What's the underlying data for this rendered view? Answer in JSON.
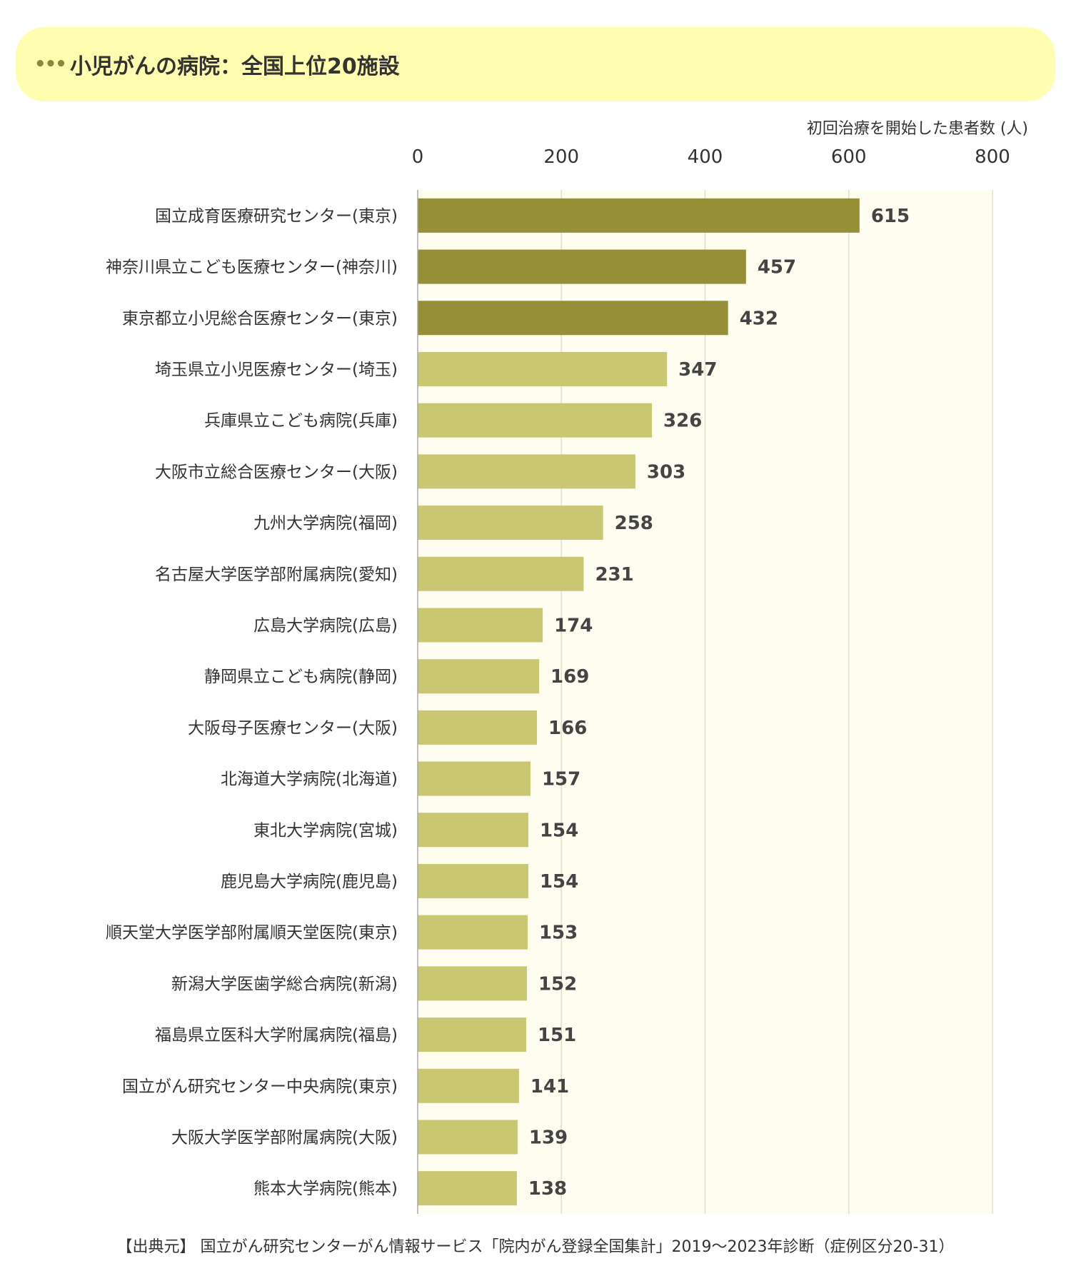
{
  "header": {
    "title": "小児がんの病院：全国上位20施設",
    "dots_icon": "ellipsis-icon"
  },
  "unit_label": "初回治療を開始した患者数 (人)",
  "source_text": "【出典元】 国立がん研究センターがん情報サービス「院内がん登録全国集計」2019～2023年診断（症例区分20-31）",
  "chart_data": {
    "type": "bar",
    "orientation": "horizontal",
    "title": "小児がんの病院：全国上位20施設",
    "xlabel": "初回治療を開始した患者数 (人)",
    "ylabel": "",
    "xlim": [
      0,
      800
    ],
    "ticks": [
      0,
      200,
      400,
      600,
      800
    ],
    "grid": true,
    "colors": {
      "highlight": "#958f38",
      "normal": "#c9c772",
      "plot_bg": "#fefdf0",
      "grid": "#e2e0c8"
    },
    "highlight_count": 3,
    "categories": [
      "国立成育医療研究センター(東京)",
      "神奈川県立こども医療センター(神奈川)",
      "東京都立小児総合医療センター(東京)",
      "埼玉県立小児医療センター(埼玉)",
      "兵庫県立こども病院(兵庫)",
      "大阪市立総合医療センター(大阪)",
      "九州大学病院(福岡)",
      "名古屋大学医学部附属病院(愛知)",
      "広島大学病院(広島)",
      "静岡県立こども病院(静岡)",
      "大阪母子医療センター(大阪)",
      "北海道大学病院(北海道)",
      "東北大学病院(宮城)",
      "鹿児島大学病院(鹿児島)",
      "順天堂大学医学部附属順天堂医院(東京)",
      "新潟大学医歯学総合病院(新潟)",
      "福島県立医科大学附属病院(福島)",
      "国立がん研究センター中央病院(東京)",
      "大阪大学医学部附属病院(大阪)",
      "熊本大学病院(熊本)"
    ],
    "values": [
      615,
      457,
      432,
      347,
      326,
      303,
      258,
      231,
      174,
      169,
      166,
      157,
      154,
      154,
      153,
      152,
      151,
      141,
      139,
      138
    ]
  }
}
